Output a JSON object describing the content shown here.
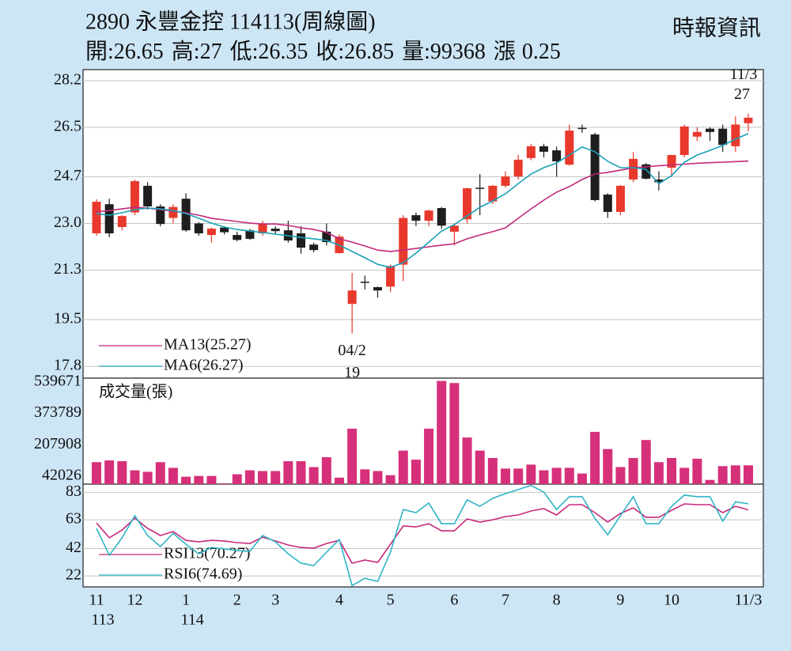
{
  "header": {
    "title": "2890 永豐金控 114113(周線圖)",
    "source": "時報資訊",
    "quote": [
      {
        "label": "開:",
        "value": 26.65
      },
      {
        "label": "高:",
        "value": 27
      },
      {
        "label": "低:",
        "value": 26.35
      },
      {
        "label": "收:",
        "value": 26.85
      },
      {
        "label": "量:",
        "value": 99368
      },
      {
        "label": "漲",
        "value": 0.25
      }
    ]
  },
  "chart_data": [
    {
      "type": "candlestick",
      "up_color": "#e8392c",
      "down_color": "#1e1e1e",
      "grid": true,
      "ylim": [
        17.37,
        28.6
      ],
      "yticks": [
        28.2,
        26.5,
        24.7,
        {
          "value": 23,
          "label": "23.0"
        },
        21.3,
        19.5,
        17.8
      ],
      "open": [
        22.64,
        23.7,
        22.87,
        23.4,
        24.37,
        23.62,
        23.2,
        23.9,
        23.0,
        22.58,
        22.85,
        22.58,
        22.75,
        22.64,
        22.81,
        22.75,
        22.64,
        22.23,
        22.7,
        21.92,
        20.07,
        20.88,
        20.68,
        20.7,
        21.5,
        23.3,
        23.1,
        23.56,
        22.7,
        23.15,
        24.3,
        23.8,
        24.37,
        24.71,
        25.38,
        25.81,
        25.66,
        25.14,
        26.48,
        26.24,
        24.05,
        23.42,
        24.6,
        25.15,
        24.6,
        25.03,
        25.49,
        26.16,
        26.45,
        26.45,
        25.81,
        26.65
      ],
      "high": [
        23.88,
        23.9,
        23.3,
        24.6,
        24.5,
        23.7,
        23.7,
        24.1,
        23.05,
        22.85,
        22.9,
        22.7,
        22.8,
        23.1,
        22.9,
        23.1,
        22.9,
        22.3,
        23.0,
        22.6,
        21.2,
        21.1,
        20.7,
        21.5,
        23.3,
        23.4,
        23.5,
        23.6,
        23.0,
        24.3,
        24.8,
        24.4,
        24.9,
        25.5,
        25.9,
        25.9,
        25.8,
        26.6,
        26.6,
        26.3,
        24.1,
        24.4,
        25.6,
        25.2,
        24.9,
        25.5,
        26.6,
        26.5,
        26.5,
        26.6,
        26.9,
        27
      ],
      "low": [
        22.55,
        22.5,
        22.75,
        23.3,
        23.5,
        22.9,
        23.0,
        22.7,
        22.55,
        22.3,
        22.6,
        22.35,
        22.4,
        22.55,
        22.6,
        22.3,
        21.9,
        21.95,
        22.2,
        21.9,
        19,
        20.6,
        20.3,
        20.5,
        20.9,
        22.9,
        22.9,
        22.8,
        22.2,
        23.0,
        23.3,
        23.7,
        24.3,
        24.6,
        25.3,
        25.4,
        24.7,
        25.1,
        26.3,
        23.8,
        23.2,
        23.3,
        24.5,
        24.6,
        24.2,
        24.7,
        25.4,
        26.0,
        26.0,
        25.6,
        25.6,
        26.35
      ],
      "close": [
        23.79,
        22.64,
        23.27,
        24.54,
        23.62,
        22.98,
        23.6,
        22.75,
        22.64,
        22.81,
        22.68,
        22.4,
        22.44,
        22.98,
        22.72,
        22.38,
        22.12,
        22.03,
        22.32,
        22.52,
        20.56,
        20.85,
        20.56,
        21.45,
        23.2,
        23.1,
        23.47,
        22.92,
        22.92,
        24.28,
        24.28,
        24.37,
        24.71,
        25.32,
        25.81,
        25.61,
        25.26,
        26.38,
        26.45,
        23.85,
        23.42,
        24.37,
        25.35,
        24.63,
        24.5,
        25.49,
        26.53,
        26.33,
        26.33,
        25.86,
        26.6,
        26.85
      ],
      "series": [
        {
          "name": "MA13(25.27)",
          "color": "#c0287a",
          "values": [
            23.42,
            23.47,
            23.53,
            23.59,
            23.56,
            23.5,
            23.45,
            23.39,
            23.3,
            23.19,
            23.13,
            23.07,
            23.01,
            22.98,
            22.98,
            22.93,
            22.84,
            22.78,
            22.67,
            22.44,
            22.32,
            22.18,
            22.03,
            21.98,
            22.03,
            22.09,
            22.15,
            22.21,
            22.26,
            22.44,
            22.58,
            22.7,
            22.84,
            23.19,
            23.53,
            23.85,
            24.14,
            24.34,
            24.6,
            24.8,
            24.86,
            24.94,
            25.03,
            25.06,
            25.1,
            25.13,
            25.16,
            25.19,
            25.21,
            25.23,
            25.25,
            25.27
          ]
        },
        {
          "name": "MA6(26.27)",
          "color": "#1aa0b8",
          "values": [
            23.36,
            23.3,
            23.39,
            23.5,
            23.56,
            23.53,
            23.47,
            23.36,
            23.19,
            23.01,
            22.87,
            22.78,
            22.72,
            22.67,
            22.61,
            22.55,
            22.49,
            22.44,
            22.38,
            22.21,
            21.98,
            21.75,
            21.51,
            21.4,
            21.57,
            21.92,
            22.32,
            22.72,
            22.96,
            23.27,
            23.59,
            23.82,
            24.08,
            24.45,
            24.8,
            25.03,
            25.2,
            25.49,
            25.78,
            25.61,
            25.26,
            25.03,
            25.03,
            24.97,
            24.45,
            24.74,
            25.23,
            25.49,
            25.66,
            25.84,
            26.07,
            26.27
          ]
        }
      ],
      "annotations": [
        {
          "date": "04/2",
          "value": 19
        },
        {
          "date": "11/3",
          "value": 27
        }
      ]
    },
    {
      "type": "bar",
      "title": "成交量(張)",
      "color": "#d6307a",
      "grid": false,
      "ylim": [
        0,
        560000
      ],
      "yticks": [
        539671,
        373789,
        207908,
        42026
      ],
      "values": [
        116000,
        125000,
        121000,
        73000,
        65000,
        116000,
        86000,
        39000,
        43000,
        43000,
        4000,
        52000,
        73000,
        69000,
        69000,
        121000,
        121000,
        90000,
        142000,
        34000,
        293000,
        78000,
        69000,
        47000,
        177000,
        129000,
        293000,
        545000,
        534000,
        246000,
        177000,
        138000,
        82000,
        82000,
        103000,
        73000,
        86000,
        86000,
        56000,
        276000,
        185000,
        90000,
        138000,
        233000,
        116000,
        138000,
        86000,
        134000,
        22000,
        95000,
        99000,
        99368
      ]
    },
    {
      "type": "line",
      "grid": true,
      "ylim": [
        14,
        89
      ],
      "yticks": [
        83,
        63,
        42,
        22
      ],
      "categories": [
        "11",
        null,
        null,
        "12",
        null,
        null,
        null,
        "1",
        null,
        null,
        null,
        "2",
        null,
        null,
        "3",
        null,
        null,
        null,
        null,
        "4",
        null,
        null,
        null,
        "5",
        null,
        null,
        null,
        null,
        "6",
        null,
        null,
        null,
        "7",
        null,
        null,
        null,
        "8",
        null,
        null,
        null,
        null,
        "9",
        null,
        null,
        null,
        "10",
        null,
        null,
        null,
        null,
        null,
        "11/3"
      ],
      "category_years": [
        "113",
        null,
        null,
        null,
        null,
        null,
        null,
        "114",
        null,
        null,
        null,
        null,
        null,
        null,
        null,
        null,
        null,
        null,
        null,
        null,
        null,
        null,
        null,
        null,
        null,
        null,
        null,
        null,
        null,
        null,
        null,
        null,
        null,
        null,
        null,
        null,
        null,
        null,
        null,
        null,
        null,
        null,
        null,
        null,
        null,
        null,
        null,
        null,
        null,
        null,
        null,
        null
      ],
      "series": [
        {
          "name": "RSI13(70.27)",
          "color": "#c8287a",
          "values": [
            60.7,
            49.8,
            55.5,
            64.2,
            56.7,
            51.5,
            54.4,
            48.0,
            46.9,
            48.0,
            47.5,
            46.3,
            45.7,
            50.3,
            47.5,
            44.6,
            42.8,
            42.3,
            45.7,
            48.0,
            31.3,
            33.6,
            31.9,
            45.1,
            58.4,
            57.8,
            60.1,
            54.9,
            54.9,
            63.6,
            61.3,
            63.0,
            65.3,
            66.5,
            69.4,
            71.1,
            66.5,
            74.0,
            74.0,
            68.2,
            61.3,
            67.6,
            71.7,
            64.8,
            64.8,
            69.9,
            74.6,
            74.0,
            74.0,
            68.2,
            72.8,
            70.27
          ]
        },
        {
          "name": "RSI6(74.69)",
          "color": "#2fb4c6",
          "values": [
            56.7,
            37.1,
            49.8,
            65.9,
            51.5,
            43.4,
            53.2,
            45.1,
            38.2,
            42.8,
            41.7,
            40.5,
            40.0,
            51.5,
            46.9,
            38.2,
            31.3,
            29.6,
            39.4,
            48.6,
            15.0,
            20.3,
            18.0,
            39.4,
            70.5,
            68.2,
            75.2,
            60.1,
            60.1,
            77.5,
            72.8,
            78.6,
            82.1,
            85.0,
            88.0,
            83.2,
            70.5,
            79.8,
            79.8,
            64.0,
            52.0,
            66.0,
            79.8,
            60.1,
            60.1,
            72.8,
            81.0,
            79.8,
            79.8,
            62.0,
            76.0,
            74.69
          ]
        }
      ]
    }
  ]
}
